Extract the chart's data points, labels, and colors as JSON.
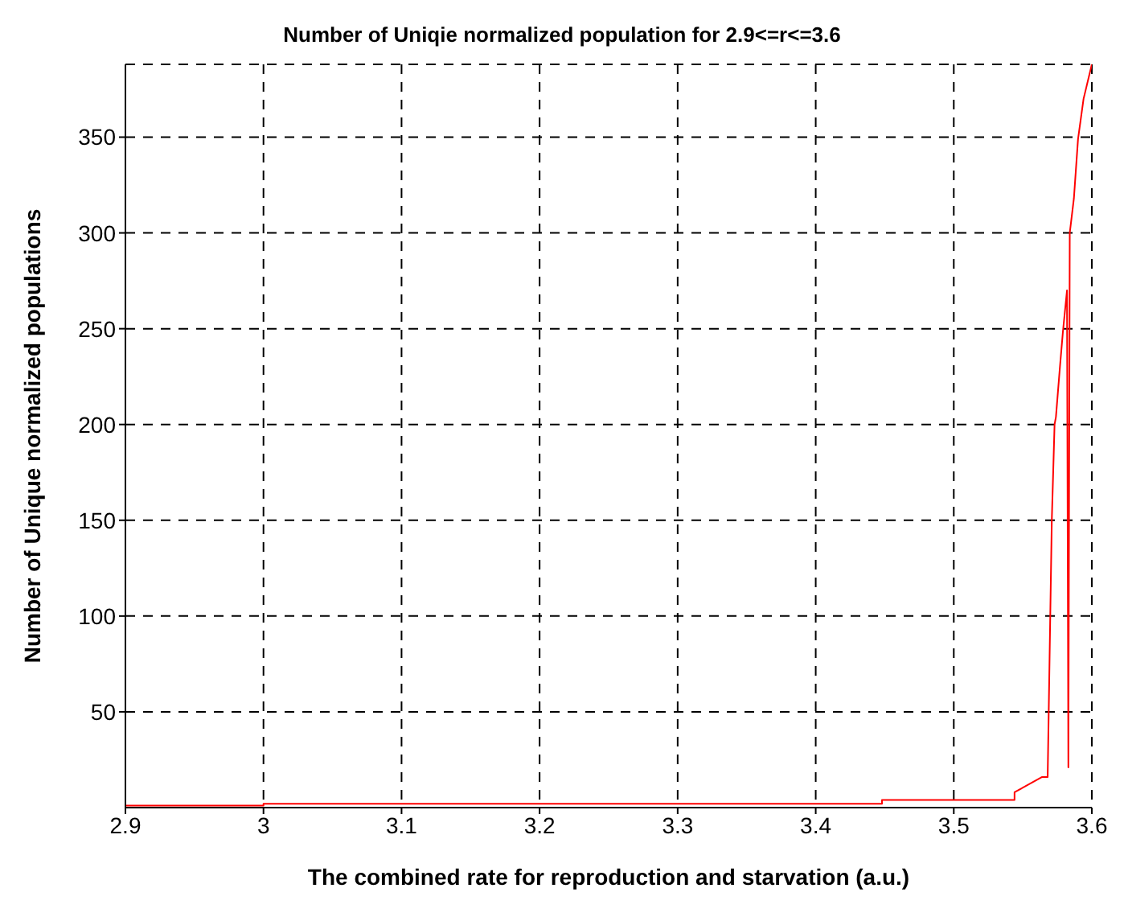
{
  "chart_data": {
    "type": "line",
    "title": "Number of Uniqie normalized population for 2.9<=r<=3.6",
    "xlabel": "The combined rate for reproduction and starvation (a.u.)",
    "ylabel": "Number of Unique normalized populations",
    "x": [
      2.9,
      3.0,
      3.0,
      3.448,
      3.448,
      3.544,
      3.544,
      3.564,
      3.568,
      3.571,
      3.573,
      3.574,
      3.577,
      3.579,
      3.582,
      3.583,
      3.584,
      3.587,
      3.59,
      3.594,
      3.6
    ],
    "series": [
      {
        "color": "#ff0000",
        "values": [
          1,
          1,
          2,
          2,
          4,
          4,
          8,
          16,
          16,
          150,
          200,
          204,
          231,
          248,
          270,
          21,
          300,
          318,
          349,
          370,
          388
        ]
      }
    ],
    "xlim": [
      2.9,
      3.6
    ],
    "xticks": [
      2.9,
      3,
      3.1,
      3.2,
      3.3,
      3.4,
      3.5,
      3.6
    ],
    "ylim": [
      0,
      388
    ],
    "yticks": [
      50,
      100,
      150,
      200,
      250,
      300,
      350
    ],
    "grid": true,
    "legend": false,
    "marker": "none",
    "line_style": "solid"
  }
}
